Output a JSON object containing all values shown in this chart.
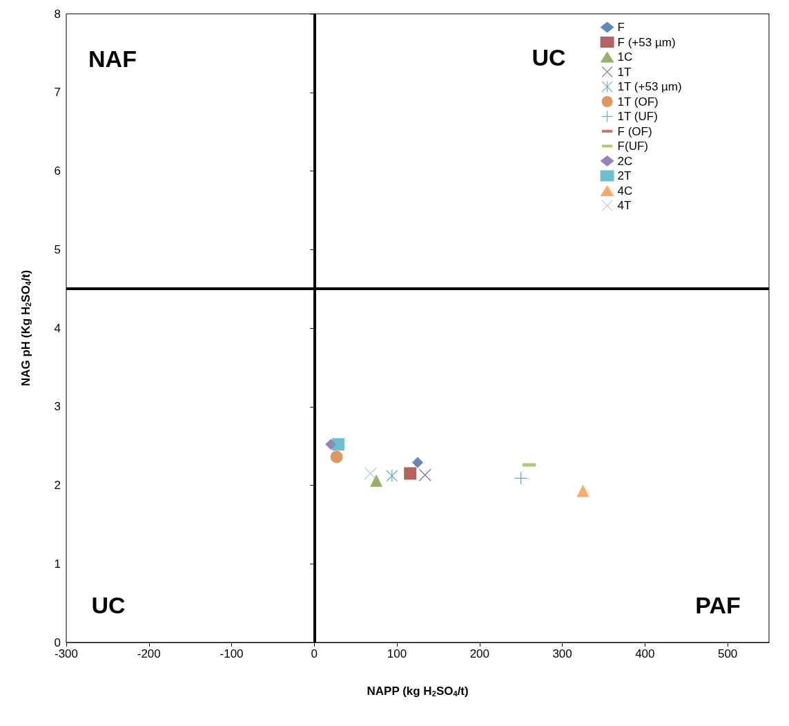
{
  "chart_data": {
    "type": "scatter",
    "xlabel": "NAPP (kg H$_{2}$SO$_{4}$/t)",
    "ylabel": "NAG pH (Kg H$_{2}$SO$_{4}$/t)",
    "xlim": [
      -300,
      550
    ],
    "xticks": [
      -300,
      -200,
      -100,
      0,
      100,
      200,
      300,
      400,
      500
    ],
    "ylim": [
      0,
      8
    ],
    "yticks": [
      0,
      1,
      2,
      3,
      4,
      5,
      6,
      7,
      8
    ],
    "grid": false,
    "legend": "top right",
    "series": [
      {
        "name": "F",
        "color": "#4068a4",
        "marker": "diamond",
        "x": [
          125
        ],
        "values": [
          2.29
        ]
      },
      {
        "name": "F (+53 µm)",
        "color": "#a03c3a",
        "marker": "square",
        "x": [
          116
        ],
        "values": [
          2.15
        ]
      },
      {
        "name": "1C",
        "color": "#7f9a44",
        "marker": "triangle",
        "x": [
          75
        ],
        "values": [
          2.06
        ]
      },
      {
        "name": "1T",
        "color": "#62497f",
        "marker": "cross",
        "x": [
          134
        ],
        "values": [
          2.13
        ]
      },
      {
        "name": "1T (+53 µm)",
        "color": "#3a9ab0",
        "marker": "star",
        "x": [
          94
        ],
        "values": [
          2.12
        ]
      },
      {
        "name": "1T (OF)",
        "color": "#d2803a",
        "marker": "circle",
        "x": [
          27
        ],
        "values": [
          2.36
        ]
      },
      {
        "name": "1T (UF)",
        "color": "#4a7fc6",
        "marker": "plus",
        "x": [
          250
        ],
        "values": [
          2.09
        ]
      },
      {
        "name": "F (OF)",
        "color": "#c0504d"
      },
      {
        "name": "F(UF)",
        "color": "#9bbb59",
        "x": [
          260
        ],
        "values": [
          2.26
        ]
      },
      {
        "name": "2C",
        "color": "#8064a2",
        "marker": "diamond",
        "x": [
          20
        ],
        "values": [
          2.52
        ]
      },
      {
        "name": "2T",
        "color": "#4bacc6",
        "marker": "square",
        "x": [
          29
        ],
        "values": [
          2.52
        ]
      },
      {
        "name": "4C",
        "color": "#f79646",
        "marker": "triangle",
        "x": [
          325
        ],
        "values": [
          1.93
        ]
      },
      {
        "name": "4T",
        "color": "#a5b9da",
        "marker": "cross",
        "x": [
          68
        ],
        "values": [
          2.15
        ]
      }
    ],
    "ref_lines": [
      {
        "axis": "x",
        "value": 0,
        "color": "#000000"
      },
      {
        "axis": "y",
        "value": 4.5,
        "color": "#000000"
      }
    ],
    "annotations": [
      "NAF",
      "UC",
      "UC",
      "PAF"
    ]
  }
}
